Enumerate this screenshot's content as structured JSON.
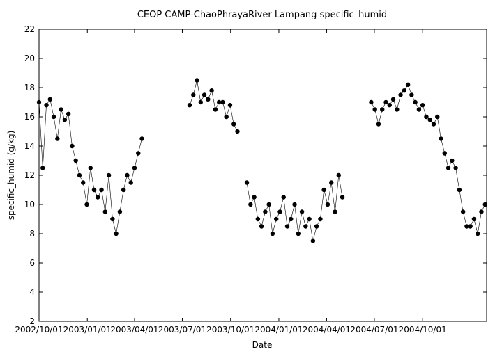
{
  "chart_data": {
    "type": "scatter",
    "title": "CEOP CAMP-ChaoPhrayaRiver Lampang  specific_humid",
    "xlabel": "Date",
    "ylabel": "specific_humid (g/kg)",
    "xlim": [
      "2002-10-01",
      "2005-01-31"
    ],
    "ylim": [
      2,
      22
    ],
    "x_ticks": [
      "2002/10/01",
      "2003/01/01",
      "2003/04/01",
      "2003/07/01",
      "2003/10/01",
      "2004/01/01",
      "2004/04/01",
      "2004/07/01",
      "2004/10/01"
    ],
    "x_tick_dates": [
      "2002-10-01",
      "2003-01-01",
      "2003-04-01",
      "2003-07-01",
      "2003-10-01",
      "2004-01-01",
      "2004-04-01",
      "2004-07-01",
      "2004-10-01"
    ],
    "y_ticks": [
      2,
      4,
      6,
      8,
      10,
      12,
      14,
      16,
      18,
      20,
      22
    ],
    "grid": false,
    "marker": "filled-circle",
    "series": [
      {
        "segments": [
          {
            "x": [
              "2002-10-01",
              "2002-10-08",
              "2002-10-15",
              "2002-10-22",
              "2002-10-29",
              "2002-11-05",
              "2002-11-12",
              "2002-11-19",
              "2002-11-26",
              "2002-12-03",
              "2002-12-10",
              "2002-12-17",
              "2002-12-24",
              "2002-12-31",
              "2003-01-07",
              "2003-01-14",
              "2003-01-21",
              "2003-01-28",
              "2003-02-04",
              "2003-02-11",
              "2003-02-18",
              "2003-02-25",
              "2003-03-04",
              "2003-03-11",
              "2003-03-18",
              "2003-03-25",
              "2003-04-01",
              "2003-04-08",
              "2003-04-15"
            ],
            "y": [
              17.0,
              12.5,
              16.8,
              17.2,
              16.0,
              14.5,
              16.5,
              15.8,
              16.2,
              14.0,
              13.0,
              12.0,
              11.5,
              10.0,
              12.5,
              11.0,
              10.5,
              11.0,
              9.5,
              12.0,
              9.0,
              8.0,
              9.5,
              11.0,
              12.0,
              11.5,
              12.5,
              13.5,
              14.5
            ]
          },
          {
            "x": [
              "2003-07-15",
              "2003-07-22",
              "2003-07-29",
              "2003-08-05",
              "2003-08-12",
              "2003-08-19",
              "2003-08-26",
              "2003-09-02",
              "2003-09-09",
              "2003-09-16",
              "2003-09-23",
              "2003-09-30",
              "2003-10-07",
              "2003-10-14"
            ],
            "y": [
              16.8,
              17.5,
              18.5,
              17.0,
              17.5,
              17.2,
              17.8,
              16.5,
              17.0,
              17.0,
              16.0,
              16.8,
              15.5,
              15.0
            ]
          },
          {
            "x": [
              "2003-11-01",
              "2003-11-08",
              "2003-11-15",
              "2003-11-22",
              "2003-11-29",
              "2003-12-06",
              "2003-12-13",
              "2003-12-20",
              "2003-12-27",
              "2004-01-03",
              "2004-01-10",
              "2004-01-17",
              "2004-01-24",
              "2004-01-31",
              "2004-02-07",
              "2004-02-14",
              "2004-02-21",
              "2004-02-28",
              "2004-03-06",
              "2004-03-13",
              "2004-03-20",
              "2004-03-27",
              "2004-04-03",
              "2004-04-10",
              "2004-04-17",
              "2004-04-24",
              "2004-05-01"
            ],
            "y": [
              11.5,
              10.0,
              10.5,
              9.0,
              8.5,
              9.5,
              10.0,
              8.0,
              9.0,
              9.5,
              10.5,
              8.5,
              9.0,
              10.0,
              8.0,
              9.5,
              8.5,
              9.0,
              7.5,
              8.5,
              9.0,
              11.0,
              10.0,
              11.5,
              9.5,
              12.0,
              10.5
            ]
          },
          {
            "x": [
              "2004-06-25",
              "2004-07-02",
              "2004-07-09",
              "2004-07-16",
              "2004-07-23",
              "2004-07-30",
              "2004-08-06",
              "2004-08-13",
              "2004-08-20",
              "2004-08-27",
              "2004-09-03",
              "2004-09-10",
              "2004-09-17",
              "2004-09-24",
              "2004-10-01",
              "2004-10-08",
              "2004-10-15",
              "2004-10-22",
              "2004-10-29",
              "2004-11-05",
              "2004-11-12",
              "2004-11-19",
              "2004-11-26",
              "2004-12-03",
              "2004-12-10",
              "2004-12-17",
              "2004-12-24",
              "2004-12-31",
              "2005-01-07",
              "2005-01-14",
              "2005-01-21",
              "2005-01-28"
            ],
            "y": [
              17.0,
              16.5,
              15.5,
              16.5,
              17.0,
              16.8,
              17.2,
              16.5,
              17.5,
              17.8,
              18.2,
              17.5,
              17.0,
              16.5,
              16.8,
              16.0,
              15.8,
              15.5,
              16.0,
              14.5,
              13.5,
              12.5,
              13.0,
              12.5,
              11.0,
              9.5,
              8.5,
              8.5,
              9.0,
              8.0,
              9.5,
              10.0
            ]
          }
        ]
      }
    ]
  }
}
